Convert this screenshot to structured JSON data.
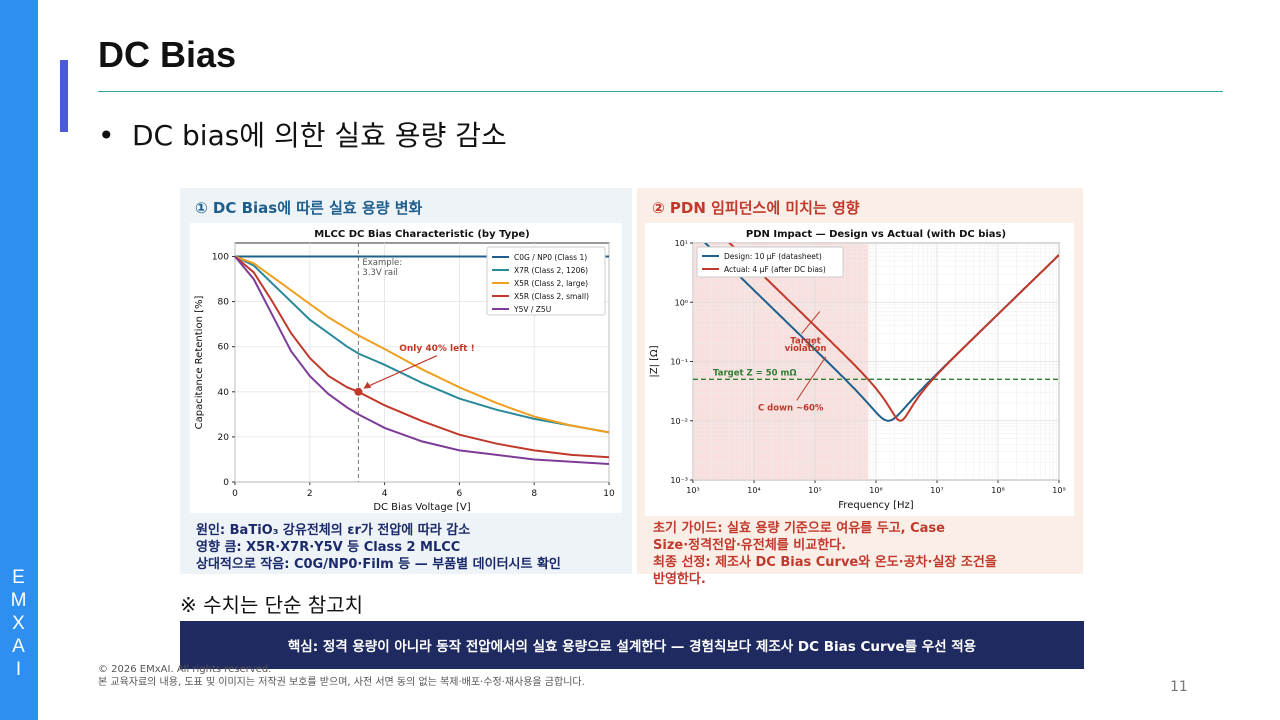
{
  "sidebar": {
    "letters": [
      "E",
      "M",
      "X",
      "A",
      "I"
    ]
  },
  "slide": {
    "title": "DC Bias",
    "bullet": "DC bias에 의한 실효 용량 감소",
    "footnote": "※ 수치는 단순 참고치",
    "key_message": "핵심: 정격 용량이 아니라 동작 전압에서의 실효 용량으로 설계한다 — 경험칙보다 제조사 DC Bias Curve를 우선 적용",
    "copyright": "© 2026 EMxAI. All rights reserved.",
    "notice": "본 교육자료의 내용, 도표 및 이미지는 저작권 보호를 받으며, 사전 서면 동의 없는 복제·배포·수정·재사용을 금합니다.",
    "page_number": "11"
  },
  "left_panel": {
    "heading": "① DC Bias에 따른 실효 용량 변화",
    "notes": [
      "원인: BaTiO₃ 강유전체의 εr가 전압에 따라 감소",
      "영향 큼: X5R·X7R·Y5V 등 Class 2 MLCC",
      "상대적으로 작음: C0G/NP0·Film 등 — 부품별 데이터시트 확인"
    ]
  },
  "right_panel": {
    "heading": "② PDN 임피던스에 미치는 영향",
    "notes": [
      "초기 가이드: 실효 용량 기준으로 여유를 두고, Case",
      "Size·정격전압·유전체를 비교한다.",
      "최종 선정: 제조사 DC Bias Curve와 온도·공차·실장 조건을",
      "반영한다."
    ]
  },
  "chart_data": [
    {
      "type": "line",
      "title": "MLCC DC Bias Characteristic (by Type)",
      "xlabel": "DC Bias Voltage [V]",
      "ylabel": "Capacitance Retention [%]",
      "xlim": [
        0,
        10
      ],
      "ylim": [
        0,
        106
      ],
      "xticks": [
        0,
        2,
        4,
        6,
        8,
        10
      ],
      "yticks": [
        0,
        20,
        40,
        60,
        80,
        100
      ],
      "grid": true,
      "legend_position": "top-right",
      "x": [
        0,
        0.5,
        1,
        1.5,
        2,
        2.5,
        3,
        3.3,
        4,
        5,
        6,
        7,
        8,
        9,
        10
      ],
      "series": [
        {
          "name": "C0G / NP0 (Class 1)",
          "color": "#1f5f8b",
          "values": [
            100,
            100,
            100,
            100,
            100,
            100,
            100,
            100,
            100,
            100,
            100,
            100,
            100,
            100,
            100
          ]
        },
        {
          "name": "X7R (Class 2, 1206)",
          "color": "#2a8a9a",
          "values": [
            100,
            96,
            88,
            80,
            72,
            66,
            60,
            57,
            52,
            44,
            37,
            32,
            28,
            25,
            22
          ]
        },
        {
          "name": "X5R (Class 2, large)",
          "color": "#f0a020",
          "values": [
            100,
            97,
            91,
            85,
            79,
            73,
            68,
            65,
            59,
            50,
            42,
            35,
            29,
            25,
            22
          ]
        },
        {
          "name": "X5R (Class 2, small)",
          "color": "#c0392b",
          "values": [
            100,
            93,
            80,
            66,
            55,
            47,
            42,
            40,
            34,
            27,
            21,
            17,
            14,
            12,
            11
          ]
        },
        {
          "name": "Y5V / Z5U",
          "color": "#7d3c98",
          "values": [
            100,
            90,
            74,
            58,
            47,
            39,
            33,
            30,
            24,
            18,
            14,
            12,
            10,
            9,
            8
          ]
        }
      ],
      "annotations": [
        {
          "text": "Example:",
          "x": 3.3
        },
        {
          "text": "3.3V rail",
          "x": 3.3
        },
        {
          "text": "Only 40% left !",
          "x": 3.3,
          "y": 40
        }
      ]
    },
    {
      "type": "line",
      "title": "PDN Impact — Design vs Actual (with DC bias)",
      "xlabel": "Frequency [Hz]",
      "ylabel": "|Z| [Ω]",
      "x_scale": "log",
      "y_scale": "log",
      "xlim": [
        1000,
        1000000000
      ],
      "ylim": [
        0.001,
        10
      ],
      "xtick_labels": [
        "10³",
        "10⁴",
        "10⁵",
        "10⁶",
        "10⁷",
        "10⁸",
        "10⁹"
      ],
      "ytick_labels": [
        "10⁻³",
        "10⁻²",
        "10⁻¹",
        "10⁰",
        "10¹"
      ],
      "grid": true,
      "legend_position": "top-left",
      "target": {
        "label": "Target Z = 50 mΩ",
        "value": 0.05,
        "color": "#2e7d32"
      },
      "violation_band": {
        "x_from": 1000,
        "x_to": 750000,
        "label": "Target\nviolation"
      },
      "series": [
        {
          "name": "Design: 10 μF (datasheet)",
          "color": "#1f5f8b",
          "C_uF": 10,
          "ESR_ohm": 0.01,
          "ESL_nH": 1.0
        },
        {
          "name": "Actual: 4 μF (after DC bias)",
          "color": "#c0392b",
          "C_uF": 4,
          "ESR_ohm": 0.01,
          "ESL_nH": 1.0
        }
      ],
      "annotations": [
        {
          "text": "Target",
          "x": 70000,
          "y": 0.2
        },
        {
          "text": "violation",
          "x": 70000,
          "y": 0.15
        },
        {
          "text": "C down ~60%",
          "x": 40000,
          "y": 0.015
        }
      ]
    }
  ]
}
